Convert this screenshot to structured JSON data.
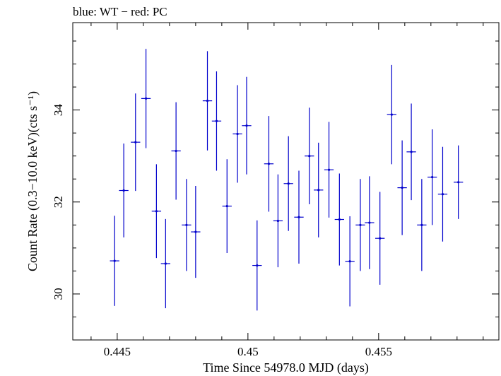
{
  "chart_data": {
    "type": "scatter",
    "title": "blue: WT − red: PC",
    "xlabel": "Time Since 54978.0 MJD (days)",
    "ylabel": "Count Rate (0.3−10.0 keV)(cts s⁻¹)",
    "xlim": [
      0.4433,
      0.4596
    ],
    "ylim": [
      29.0,
      35.9
    ],
    "xticks": [
      {
        "value": 0.445,
        "label": "0.445"
      },
      {
        "value": 0.45,
        "label": "0.45"
      },
      {
        "value": 0.455,
        "label": "0.455"
      }
    ],
    "yticks": [
      {
        "value": 30,
        "label": "30"
      },
      {
        "value": 32,
        "label": "32"
      },
      {
        "value": 34,
        "label": "34"
      }
    ],
    "grid": false,
    "series": [
      {
        "color": "#0000cc",
        "x_halfwidth": 0.00018,
        "points": [
          {
            "x": 0.4449,
            "y": 30.72,
            "err": 0.98
          },
          {
            "x": 0.44525,
            "y": 32.25,
            "err": 1.02
          },
          {
            "x": 0.4457,
            "y": 33.3,
            "err": 1.06
          },
          {
            "x": 0.4461,
            "y": 34.25,
            "err": 1.08
          },
          {
            "x": 0.4465,
            "y": 31.8,
            "err": 1.02
          },
          {
            "x": 0.44685,
            "y": 30.66,
            "err": 0.97
          },
          {
            "x": 0.44725,
            "y": 33.11,
            "err": 1.06
          },
          {
            "x": 0.44765,
            "y": 31.5,
            "err": 1.0
          },
          {
            "x": 0.448,
            "y": 31.35,
            "err": 1.0
          },
          {
            "x": 0.44845,
            "y": 34.2,
            "err": 1.08
          },
          {
            "x": 0.4488,
            "y": 33.76,
            "err": 1.08
          },
          {
            "x": 0.4492,
            "y": 31.91,
            "err": 1.02
          },
          {
            "x": 0.4496,
            "y": 33.48,
            "err": 1.06
          },
          {
            "x": 0.44995,
            "y": 33.66,
            "err": 1.06
          },
          {
            "x": 0.45035,
            "y": 30.62,
            "err": 0.98
          },
          {
            "x": 0.4508,
            "y": 32.83,
            "err": 1.04
          },
          {
            "x": 0.45115,
            "y": 31.59,
            "err": 1.01
          },
          {
            "x": 0.45155,
            "y": 32.4,
            "err": 1.03
          },
          {
            "x": 0.45195,
            "y": 31.67,
            "err": 1.01
          },
          {
            "x": 0.45235,
            "y": 33.0,
            "err": 1.05
          },
          {
            "x": 0.4527,
            "y": 32.26,
            "err": 1.03
          },
          {
            "x": 0.4531,
            "y": 32.7,
            "err": 1.04
          },
          {
            "x": 0.4535,
            "y": 31.62,
            "err": 1.0
          },
          {
            "x": 0.4539,
            "y": 30.71,
            "err": 0.98
          },
          {
            "x": 0.4543,
            "y": 31.5,
            "err": 1.0
          },
          {
            "x": 0.45465,
            "y": 31.55,
            "err": 1.01
          },
          {
            "x": 0.45505,
            "y": 31.21,
            "err": 1.01
          },
          {
            "x": 0.4555,
            "y": 33.9,
            "err": 1.08
          },
          {
            "x": 0.4559,
            "y": 32.31,
            "err": 1.03
          },
          {
            "x": 0.45625,
            "y": 33.09,
            "err": 1.05
          },
          {
            "x": 0.45665,
            "y": 31.5,
            "err": 1.0
          },
          {
            "x": 0.45705,
            "y": 32.54,
            "err": 1.04
          },
          {
            "x": 0.45745,
            "y": 32.17,
            "err": 1.03
          },
          {
            "x": 0.45805,
            "y": 32.43,
            "err": 0.8
          }
        ]
      }
    ]
  }
}
